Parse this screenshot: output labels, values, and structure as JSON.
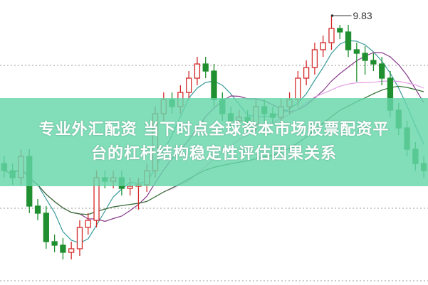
{
  "title_lines": [
    "专业外汇配资 当下时点全球资本市场股票配资平",
    "台的杠杆结构稳定性评估因果关系"
  ],
  "chart_data": {
    "type": "candlestick",
    "ylim": [
      6.04,
      10.05
    ],
    "grid": true,
    "grid_levels": [
      9.13,
      7.12,
      6.1
    ],
    "max_annotation": {
      "label": "9.83",
      "value": 9.83,
      "index": 39
    },
    "colors": {
      "up": "#d42a2a",
      "down": "#1f8f2f",
      "ma5": "#3a9a9a",
      "ma10": "#8a3a8a",
      "ma20": "#e39ae3",
      "ma30": "#2f6f2f",
      "banner": "#66d6aa"
    },
    "moving_averages": [
      5,
      10,
      20,
      30
    ],
    "candles": [
      [
        7.75,
        7.85,
        7.55,
        7.65
      ],
      [
        7.65,
        7.75,
        7.45,
        7.55
      ],
      [
        7.55,
        7.95,
        7.45,
        7.85
      ],
      [
        7.85,
        7.95,
        7.05,
        7.15
      ],
      [
        7.15,
        7.25,
        6.95,
        7.05
      ],
      [
        7.05,
        7.15,
        6.55,
        6.65
      ],
      [
        6.65,
        6.75,
        6.5,
        6.6
      ],
      [
        6.6,
        6.7,
        6.4,
        6.5
      ],
      [
        6.5,
        6.65,
        6.4,
        6.55
      ],
      [
        6.55,
        6.95,
        6.45,
        6.85
      ],
      [
        6.85,
        7.05,
        6.75,
        6.95
      ],
      [
        6.95,
        7.65,
        6.85,
        7.55
      ],
      [
        7.55,
        7.65,
        7.4,
        7.5
      ],
      [
        7.5,
        7.65,
        7.4,
        7.55
      ],
      [
        7.55,
        7.65,
        7.3,
        7.4
      ],
      [
        7.4,
        7.55,
        7.3,
        7.43
      ],
      [
        7.43,
        7.55,
        7.1,
        7.45
      ],
      [
        7.45,
        7.75,
        7.35,
        7.65
      ],
      [
        7.65,
        8.55,
        7.55,
        8.45
      ],
      [
        8.45,
        8.75,
        8.35,
        8.65
      ],
      [
        8.65,
        8.75,
        8.45,
        8.55
      ],
      [
        8.55,
        8.85,
        8.45,
        8.75
      ],
      [
        8.75,
        9.05,
        8.65,
        8.95
      ],
      [
        8.95,
        9.25,
        8.85,
        9.15
      ],
      [
        9.15,
        9.25,
        8.95,
        9.05
      ],
      [
        9.05,
        9.15,
        8.55,
        8.65
      ],
      [
        8.65,
        8.75,
        8.35,
        8.45
      ],
      [
        8.45,
        8.55,
        8.25,
        8.35
      ],
      [
        8.35,
        8.5,
        8.25,
        8.4
      ],
      [
        8.4,
        8.5,
        8.2,
        8.3
      ],
      [
        8.3,
        8.65,
        8.2,
        8.55
      ],
      [
        8.55,
        8.65,
        8.35,
        8.45
      ],
      [
        8.45,
        8.55,
        8.3,
        8.4
      ],
      [
        8.4,
        8.65,
        8.3,
        8.55
      ],
      [
        8.55,
        8.75,
        8.45,
        8.65
      ],
      [
        8.65,
        9.05,
        8.55,
        8.95
      ],
      [
        8.95,
        9.2,
        8.85,
        9.1
      ],
      [
        9.1,
        9.45,
        9.0,
        9.35
      ],
      [
        9.35,
        9.55,
        9.25,
        9.45
      ],
      [
        9.45,
        9.83,
        9.35,
        9.65
      ],
      [
        9.65,
        9.7,
        9.5,
        9.6
      ],
      [
        9.6,
        9.7,
        9.25,
        9.35
      ],
      [
        9.35,
        9.45,
        8.9,
        9.3
      ],
      [
        9.3,
        9.4,
        9.0,
        9.2
      ],
      [
        9.2,
        9.3,
        9.05,
        9.15
      ],
      [
        9.15,
        9.25,
        8.85,
        8.95
      ],
      [
        8.95,
        9.05,
        8.4,
        8.5
      ],
      [
        8.5,
        8.6,
        8.15,
        8.25
      ],
      [
        8.25,
        8.35,
        7.85,
        7.95
      ],
      [
        7.95,
        8.05,
        7.65,
        7.75
      ],
      [
        7.75,
        7.85,
        7.55,
        7.65
      ]
    ]
  }
}
